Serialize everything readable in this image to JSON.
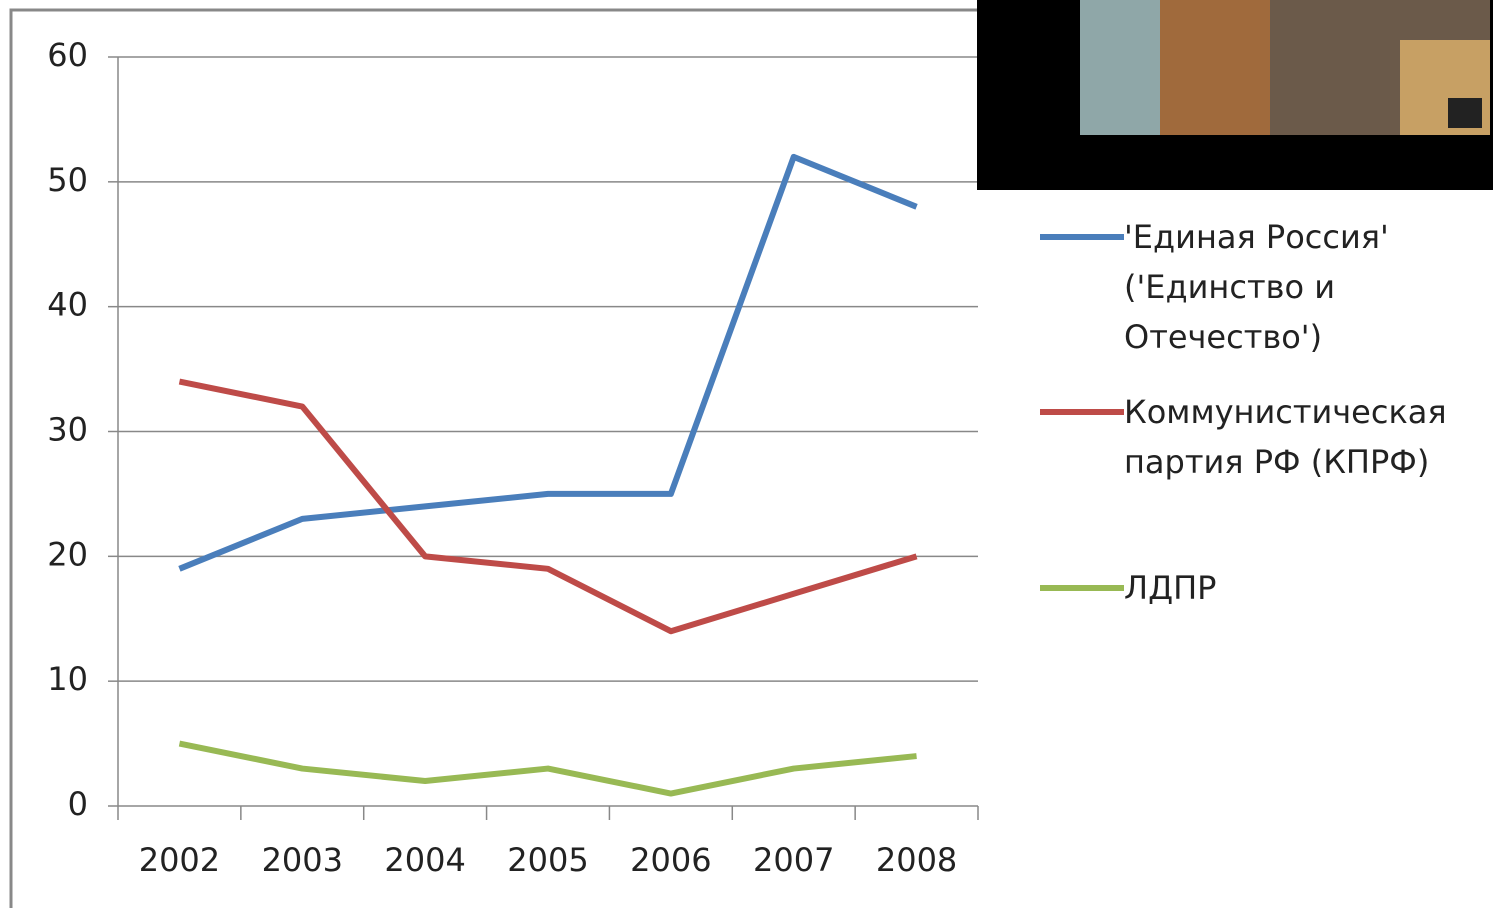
{
  "chart_data": {
    "type": "line",
    "categories": [
      "2002",
      "2003",
      "2004",
      "2005",
      "2006",
      "2007",
      "2008"
    ],
    "series": [
      {
        "name": "'Единая Россия' ('Единство и Отечество')",
        "color": "#4a7ebb",
        "values": [
          19,
          23,
          24,
          25,
          25,
          52,
          48
        ]
      },
      {
        "name": "Коммунистическая партия РФ (КПРФ)",
        "color": "#be4b48",
        "values": [
          34,
          32,
          20,
          19,
          14,
          17,
          20
        ]
      },
      {
        "name": "ЛДПР",
        "color": "#98b954",
        "values": [
          5,
          3,
          2,
          3,
          1,
          3,
          4
        ]
      }
    ],
    "ylim": [
      0,
      60
    ],
    "yticks": [
      0,
      10,
      20,
      30,
      40,
      50,
      60
    ],
    "grid": true,
    "legend": "right"
  }
}
